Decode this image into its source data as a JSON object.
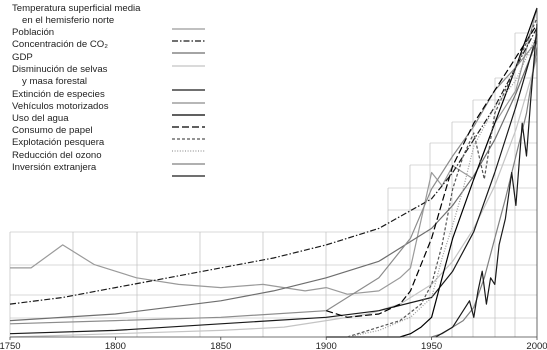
{
  "chart_data": {
    "type": "line",
    "title": "",
    "xlabel": "",
    "ylabel": "",
    "xlim": [
      1750,
      2000
    ],
    "x_ticks": [
      1750,
      1800,
      1850,
      1900,
      1950,
      2000
    ],
    "x_tick_labels": [
      "1750",
      "1800",
      "1850",
      "1900",
      "1950",
      "2000"
    ],
    "ylim": [
      0,
      100
    ],
    "grid": true,
    "legend_position": "top-left",
    "series": [
      {
        "name": "Temperatura superficial media\nen el hemisferio norte",
        "color": "#9a9a9a",
        "dash": "solid",
        "x": [
          1750,
          1760,
          1775,
          1790,
          1810,
          1830,
          1850,
          1870,
          1890,
          1900,
          1910,
          1925,
          1935,
          1940,
          1950,
          1955,
          1960,
          1970,
          1980,
          1990,
          2000
        ],
        "y": [
          21,
          21,
          28,
          22,
          18,
          16,
          15,
          16,
          14,
          15,
          13,
          14,
          18,
          21,
          50,
          46,
          52,
          48,
          65,
          75,
          100
        ]
      },
      {
        "name": "Población",
        "color": "#1a1a1a",
        "dash": "dashdot",
        "x": [
          1750,
          1775,
          1800,
          1825,
          1850,
          1875,
          1900,
          1925,
          1950,
          1960,
          1970,
          1980,
          1990,
          2000
        ],
        "y": [
          10,
          12,
          15,
          18,
          21,
          24,
          28,
          33,
          42,
          50,
          60,
          70,
          82,
          94
        ]
      },
      {
        "name": "Concentración de CO₂",
        "color": "#6e6e6e",
        "dash": "solid",
        "x": [
          1750,
          1800,
          1850,
          1875,
          1900,
          1925,
          1950,
          1960,
          1970,
          1980,
          1990,
          2000
        ],
        "y": [
          5,
          7,
          11,
          14,
          18,
          23,
          33,
          40,
          49,
          60,
          74,
          90
        ]
      },
      {
        "name": "GDP",
        "color": "#c4c4c4",
        "dash": "solid",
        "x": [
          1750,
          1800,
          1850,
          1880,
          1900,
          1920,
          1935,
          1950,
          1960,
          1970,
          1980,
          1990,
          2000
        ],
        "y": [
          0,
          1,
          2,
          3,
          5,
          7,
          10,
          16,
          23,
          33,
          46,
          63,
          85
        ]
      },
      {
        "name": "Disminución de selvas\ny masa forestal",
        "color": "#1a1a1a",
        "dash": "solid",
        "x": [
          1750,
          1800,
          1850,
          1900,
          1925,
          1950,
          1960,
          1970,
          1980,
          1990,
          2000
        ],
        "y": [
          1,
          2,
          4,
          6,
          8,
          12,
          20,
          32,
          50,
          70,
          92
        ]
      },
      {
        "name": "Extinción de especies",
        "color": "#8c8c8c",
        "dash": "solid",
        "x": [
          1750,
          1800,
          1850,
          1900,
          1910,
          1925,
          1940,
          1950,
          1960,
          1970,
          1980,
          1990,
          2000
        ],
        "y": [
          4,
          5,
          6,
          8,
          12,
          18,
          30,
          45,
          55,
          64,
          75,
          82,
          90
        ]
      },
      {
        "name": "Vehículos motorizados",
        "color": "#000000",
        "dash": "solid",
        "x": [
          1900,
          1920,
          1935,
          1940,
          1945,
          1950,
          1955,
          1960,
          1970,
          1980,
          1990,
          2000
        ],
        "y": [
          0,
          0,
          0,
          1,
          3,
          6,
          18,
          30,
          48,
          65,
          82,
          100
        ]
      },
      {
        "name": "Uso del agua",
        "color": "#000000",
        "dash": "longdash",
        "x": [
          1900,
          1910,
          1925,
          1935,
          1940,
          1950,
          1960,
          1970,
          1980,
          1990,
          2000
        ],
        "y": [
          8,
          6,
          7,
          10,
          14,
          30,
          52,
          65,
          75,
          85,
          95
        ]
      },
      {
        "name": "Consumo de papel",
        "color": "#555555",
        "dash": "dash",
        "x": [
          1910,
          1920,
          1935,
          1945,
          1950,
          1955,
          1960,
          1965,
          1970,
          1975,
          1980,
          1990,
          2000
        ],
        "y": [
          0,
          2,
          5,
          10,
          16,
          28,
          45,
          55,
          62,
          48,
          68,
          82,
          97
        ]
      },
      {
        "name": "Explotación pesquera",
        "color": "#9a9a9a",
        "dash": "dot",
        "x": [
          1910,
          1925,
          1940,
          1950,
          1955,
          1960,
          1965,
          1970,
          1980,
          1990,
          2000
        ],
        "y": [
          0,
          2,
          6,
          12,
          24,
          34,
          45,
          58,
          70,
          78,
          92
        ]
      },
      {
        "name": "Reducción del ozono",
        "color": "#808080",
        "dash": "solid",
        "x": [
          1950,
          1955,
          1960,
          1965,
          1970,
          1975,
          1980,
          1985,
          1990,
          1995,
          2000
        ],
        "y": [
          0,
          1,
          3,
          5,
          9,
          18,
          30,
          42,
          55,
          68,
          88
        ]
      },
      {
        "name": "Inversión extranjera",
        "color": "#1a1a1a",
        "dash": "solid",
        "x": [
          1952,
          1960,
          1965,
          1968,
          1970,
          1972,
          1974,
          1976,
          1978,
          1980,
          1982,
          1985,
          1988,
          1990,
          1993,
          1995,
          1997,
          2000
        ],
        "y": [
          0,
          3,
          8,
          11,
          6,
          14,
          20,
          10,
          18,
          16,
          28,
          36,
          50,
          40,
          65,
          55,
          72,
          95
        ]
      }
    ]
  }
}
